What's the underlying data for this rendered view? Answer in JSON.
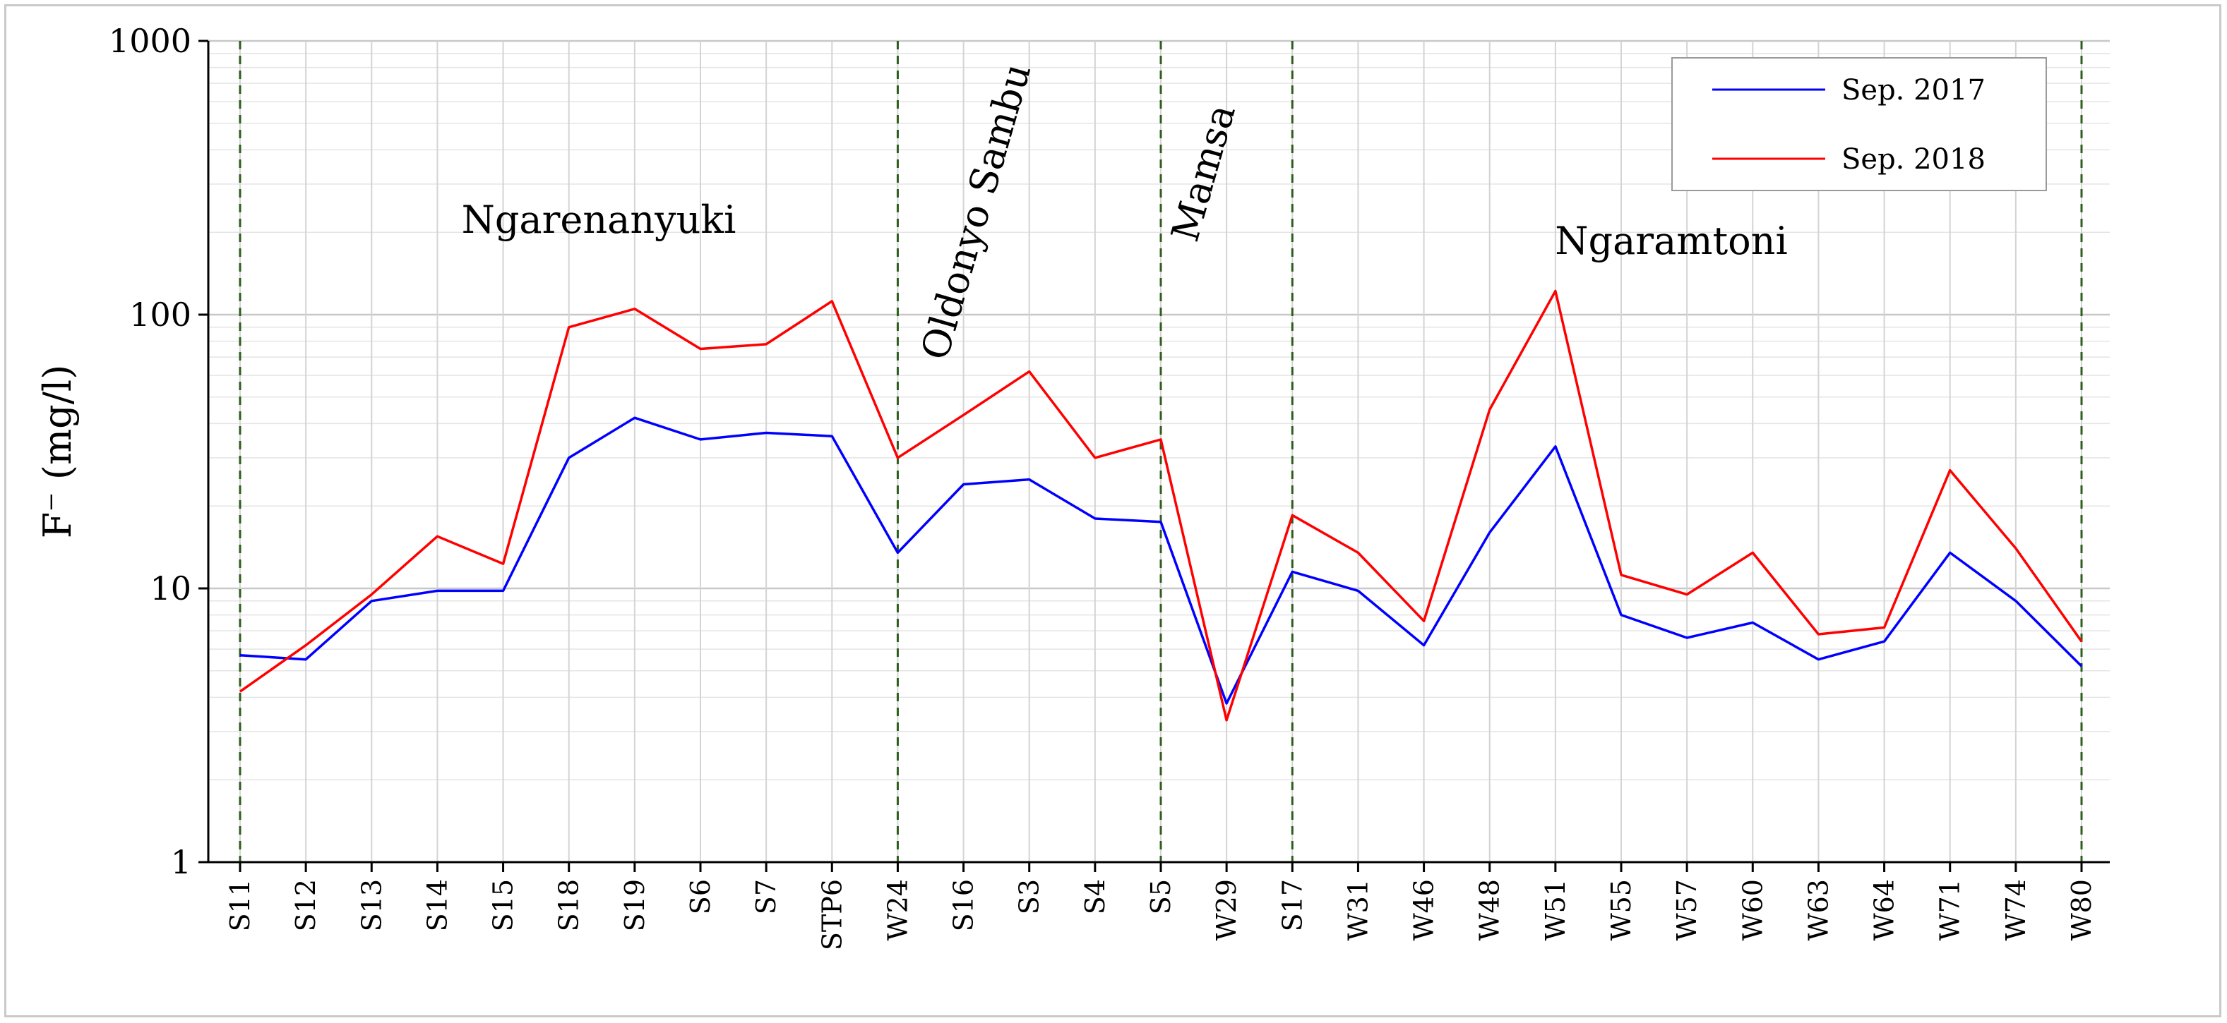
{
  "chart_data": {
    "type": "line",
    "ylabel": "F⁻ (mg/l)",
    "yscale": "log",
    "ylim": [
      1,
      1000
    ],
    "yticks": [
      {
        "value": 1,
        "label": "1"
      },
      {
        "value": 10,
        "label": "10"
      },
      {
        "value": 100,
        "label": "100"
      },
      {
        "value": 1000,
        "label": "1000"
      }
    ],
    "grid": true,
    "legend_position": "top-right",
    "categories": [
      "S11",
      "S12",
      "S13",
      "S14",
      "S15",
      "S18",
      "S19",
      "S6",
      "S7",
      "STP6",
      "W24",
      "S16",
      "S3",
      "S4",
      "S5",
      "W29",
      "S17",
      "W31",
      "W46",
      "W48",
      "W51",
      "W55",
      "W57",
      "W60",
      "W63",
      "W64",
      "W71",
      "W74",
      "W80"
    ],
    "series": [
      {
        "name": "Sep. 2017",
        "color": "#0000ff",
        "values": [
          5.7,
          5.5,
          9.0,
          9.8,
          9.8,
          30,
          42,
          35,
          37,
          36,
          13.5,
          24,
          25,
          18,
          17.5,
          3.8,
          11.5,
          9.8,
          6.2,
          16,
          33,
          8.0,
          6.6,
          7.5,
          5.5,
          6.4,
          13.5,
          9.0,
          5.2
        ]
      },
      {
        "name": "Sep. 2018",
        "color": "#ff0000",
        "values": [
          4.2,
          6.2,
          9.5,
          15.5,
          12.3,
          90,
          105,
          75,
          78,
          112,
          30,
          43,
          62,
          30,
          35,
          3.3,
          18.5,
          13.5,
          7.6,
          45,
          122,
          11.2,
          9.5,
          13.5,
          6.8,
          7.2,
          27,
          14,
          6.4
        ]
      }
    ],
    "dividers": [
      "S11",
      "W24",
      "S5",
      "S17",
      "W80"
    ],
    "region_labels": [
      {
        "text": "Ngarenanyuki",
        "rotated": false
      },
      {
        "text": "Oldonyo Sambu",
        "rotated": true
      },
      {
        "text": "Mamsa",
        "rotated": true
      },
      {
        "text": "Ngaramtoni",
        "rotated": false
      }
    ]
  }
}
